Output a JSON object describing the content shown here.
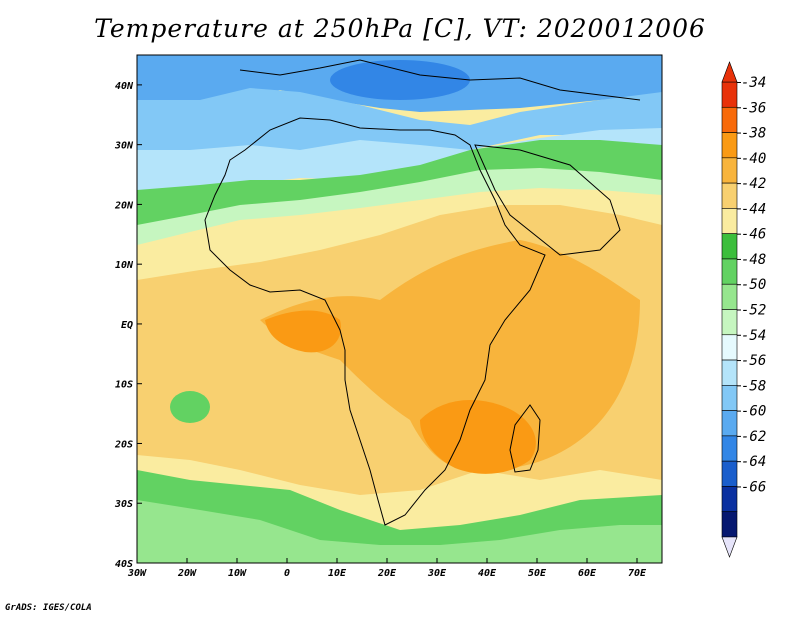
{
  "title": "Temperature at 250hPa [C], VT: 2020012006",
  "credit": "GrADS: IGES/COLA",
  "map": {
    "lon_range": [
      -30,
      75
    ],
    "lat_range": [
      -40,
      45
    ],
    "lon_ticks": [
      {
        "value": -30,
        "label": "30W"
      },
      {
        "value": -20,
        "label": "20W"
      },
      {
        "value": -10,
        "label": "10W"
      },
      {
        "value": 0,
        "label": "0"
      },
      {
        "value": 10,
        "label": "10E"
      },
      {
        "value": 20,
        "label": "20E"
      },
      {
        "value": 30,
        "label": "30E"
      },
      {
        "value": 40,
        "label": "40E"
      },
      {
        "value": 50,
        "label": "50E"
      },
      {
        "value": 60,
        "label": "60E"
      },
      {
        "value": 70,
        "label": "70E"
      }
    ],
    "lat_ticks": [
      {
        "value": 40,
        "label": "40N"
      },
      {
        "value": 30,
        "label": "30N"
      },
      {
        "value": 20,
        "label": "20N"
      },
      {
        "value": 10,
        "label": "10N"
      },
      {
        "value": 0,
        "label": "EQ"
      },
      {
        "value": -10,
        "label": "10S"
      },
      {
        "value": -20,
        "label": "20S"
      },
      {
        "value": -30,
        "label": "30S"
      },
      {
        "value": -40,
        "label": "40S"
      }
    ]
  },
  "colorbar": {
    "levels": [
      "-34",
      "-36",
      "-38",
      "-40",
      "-42",
      "-44",
      "-46",
      "-48",
      "-50",
      "-52",
      "-54",
      "-56",
      "-58",
      "-60",
      "-62",
      "-64",
      "-66"
    ],
    "colors": [
      "#e8320a",
      "#f86a0a",
      "#fa9a14",
      "#f8b43c",
      "#f8d070",
      "#faeca0",
      "#3cbe3c",
      "#62d262",
      "#96e68e",
      "#c6f6c0",
      "#e6fafe",
      "#b4e4fa",
      "#82c8f6",
      "#5aaaf0",
      "#3286e6",
      "#1a5ecc",
      "#0a30a0",
      "#061870"
    ],
    "over_color": "#e8320a",
    "under_color": "#e6e4fa"
  },
  "field": {
    "description_regions": [
      {
        "name": "north-cold",
        "color": "#82c8f6"
      },
      {
        "name": "band-light",
        "color": "#c6f6c0"
      },
      {
        "name": "band-green",
        "color": "#62d262"
      },
      {
        "name": "tropics-light",
        "color": "#faeca0"
      },
      {
        "name": "tropics-warm",
        "color": "#f8d070"
      },
      {
        "name": "warm-core",
        "color": "#f8b43c"
      },
      {
        "name": "south-green",
        "color": "#62d262"
      }
    ]
  }
}
